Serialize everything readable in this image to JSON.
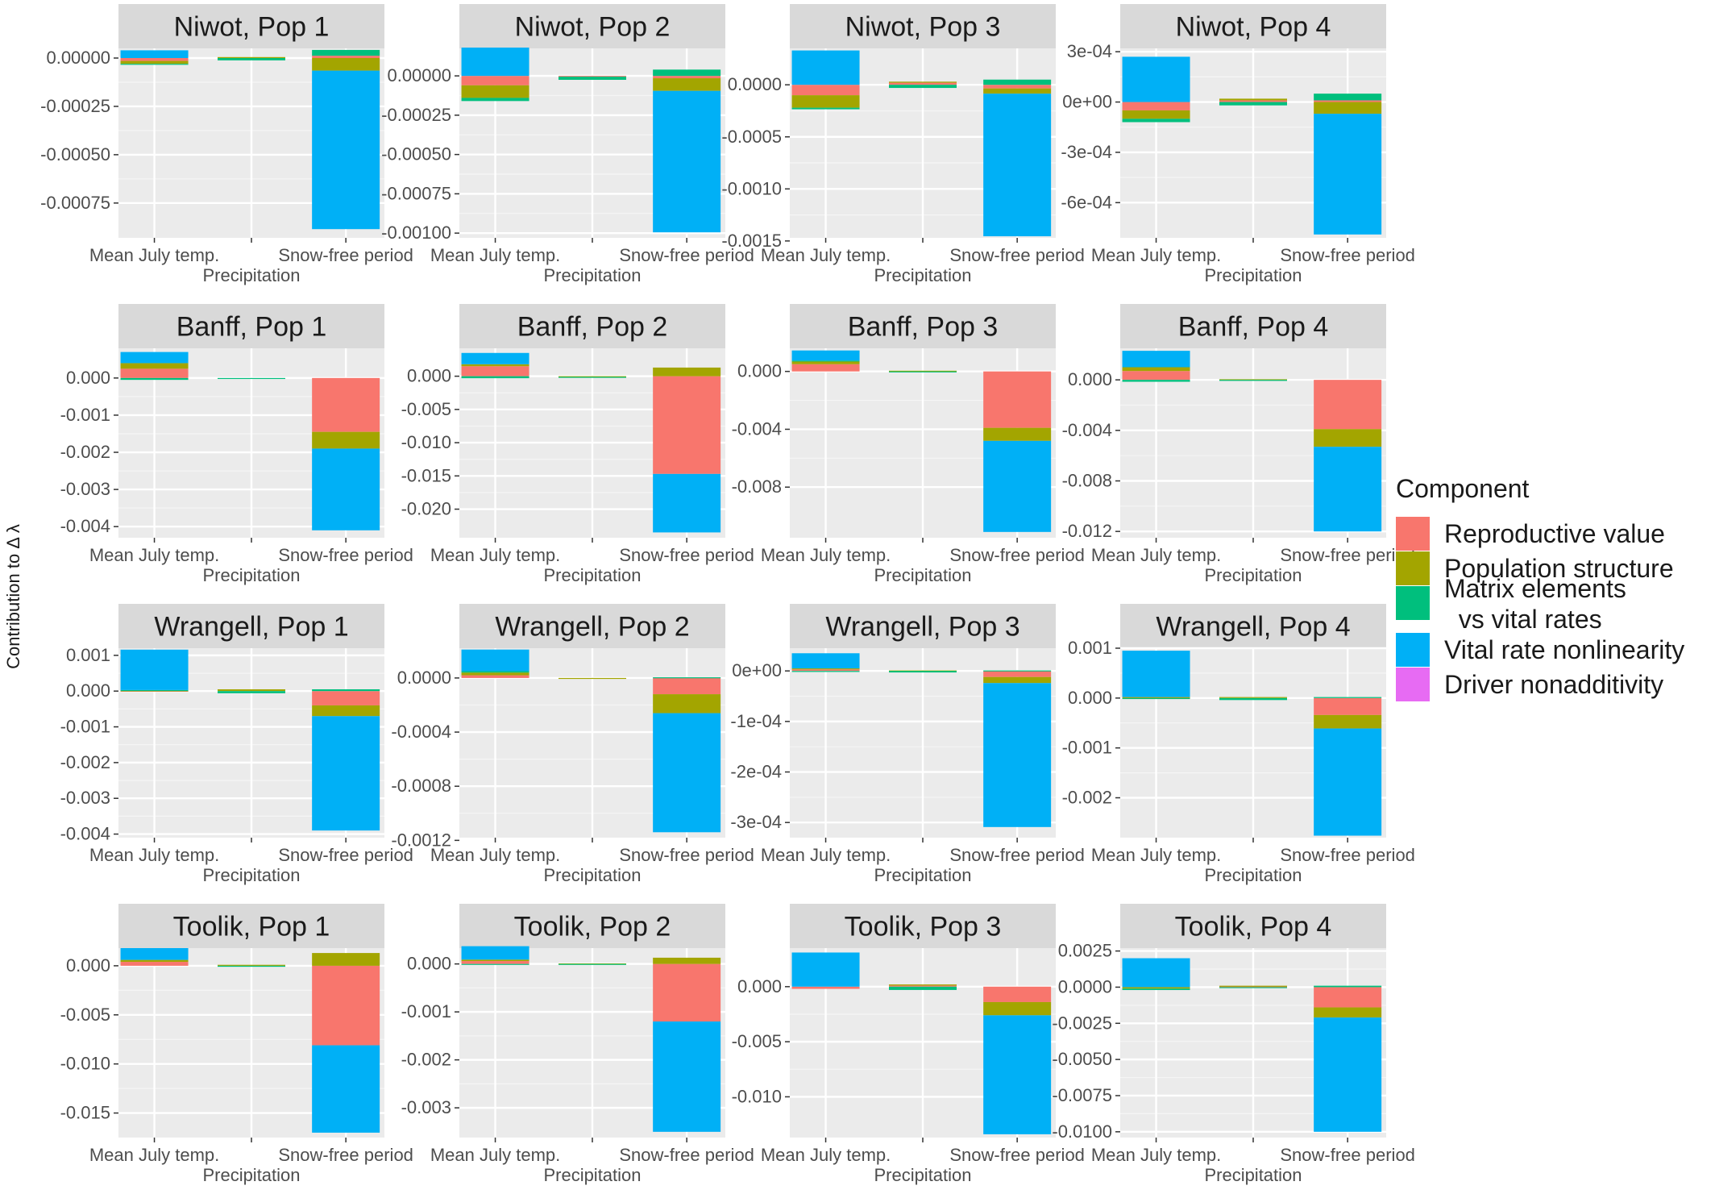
{
  "chart_data": {
    "type": "bar",
    "stacked": true,
    "ylabel": "Contribution to Δ λ",
    "categories": [
      "Mean July temp.",
      "Precipitation",
      "Snow-free period"
    ],
    "components": [
      {
        "name": "Reproductive value",
        "color": "#F8766D"
      },
      {
        "name": "Population structure",
        "color": "#A3A500"
      },
      {
        "name": "Matrix elements\n  vs vital rates",
        "color": "#00BF7D"
      },
      {
        "name": "Vital rate nonlinearity",
        "color": "#00B0F6"
      },
      {
        "name": "Driver nonadditivity",
        "color": "#E76BF3"
      }
    ],
    "legend": {
      "title": "Component",
      "position": "right"
    },
    "grid": true,
    "panels": [
      {
        "title": "Niwot, Pop 1",
        "ylim": [
          -0.00093,
          5e-05
        ],
        "yticks": [
          0,
          -0.00025,
          -0.0005,
          -0.00075
        ],
        "yticklabels": [
          "0.00000",
          "-0.00025",
          "-0.00050",
          "-0.00075"
        ],
        "bars": [
          {
            "Reproductive value": -1.5e-05,
            "Population structure": -1.5e-05,
            "Matrix elements": -5e-06,
            "Vital rate nonlinearity": 4e-05,
            "Driver nonadditivity": 0
          },
          {
            "Reproductive value": 0,
            "Population structure": 5e-06,
            "Matrix elements": -1.2e-05,
            "Vital rate nonlinearity": 0,
            "Driver nonadditivity": 0
          },
          {
            "Reproductive value": 1.2e-05,
            "Population structure": -6.5e-05,
            "Matrix elements": 3e-05,
            "Vital rate nonlinearity": -0.00082,
            "Driver nonadditivity": 0
          }
        ]
      },
      {
        "title": "Niwot, Pop 2",
        "ylim": [
          -0.00103,
          0.000175
        ],
        "yticks": [
          0,
          -0.00025,
          -0.0005,
          -0.00075,
          -0.001
        ],
        "yticklabels": [
          "0.00000",
          "-0.00025",
          "-0.00050",
          "-0.00075",
          "-0.00100"
        ],
        "bars": [
          {
            "Reproductive value": -6e-05,
            "Population structure": -8e-05,
            "Matrix elements": -2e-05,
            "Vital rate nonlinearity": 0.00018,
            "Driver nonadditivity": 0
          },
          {
            "Reproductive value": -5e-06,
            "Population structure": 0,
            "Matrix elements": -2e-05,
            "Vital rate nonlinearity": 0,
            "Driver nonadditivity": 0
          },
          {
            "Reproductive value": -1.5e-05,
            "Population structure": -8e-05,
            "Matrix elements": 4e-05,
            "Vital rate nonlinearity": -0.0009,
            "Driver nonadditivity": 0
          }
        ]
      },
      {
        "title": "Niwot, Pop 3",
        "ylim": [
          -0.00147,
          0.00035
        ],
        "yticks": [
          0,
          -0.0005,
          -0.001,
          -0.0015
        ],
        "yticklabels": [
          "0.0000",
          "-0.0005",
          "-0.0010",
          "-0.0015"
        ],
        "bars": [
          {
            "Reproductive value": -0.0001,
            "Population structure": -0.00012,
            "Matrix elements": -1.5e-05,
            "Vital rate nonlinearity": 0.00033,
            "Driver nonadditivity": 0
          },
          {
            "Reproductive value": 2e-05,
            "Population structure": 1e-05,
            "Matrix elements": -3e-05,
            "Vital rate nonlinearity": 0,
            "Driver nonadditivity": 0
          },
          {
            "Reproductive value": -3.5e-05,
            "Population structure": -5e-05,
            "Matrix elements": 5e-05,
            "Vital rate nonlinearity": -0.00137,
            "Driver nonadditivity": 0
          }
        ]
      },
      {
        "title": "Niwot, Pop 4",
        "ylim": [
          -0.00081,
          0.00032
        ],
        "yticks": [
          0.0003,
          0,
          -0.0003,
          -0.0006
        ],
        "yticklabels": [
          "3e-04",
          "0e+00",
          "-3e-04",
          "-6e-04"
        ],
        "bars": [
          {
            "Reproductive value": -5e-05,
            "Population structure": -5e-05,
            "Matrix elements": -2e-05,
            "Vital rate nonlinearity": 0.00027,
            "Driver nonadditivity": 0
          },
          {
            "Reproductive value": 1e-05,
            "Population structure": 1e-05,
            "Matrix elements": -2e-05,
            "Vital rate nonlinearity": 0,
            "Driver nonadditivity": 0
          },
          {
            "Reproductive value": 1e-05,
            "Population structure": -7e-05,
            "Matrix elements": 4e-05,
            "Vital rate nonlinearity": -0.00072,
            "Driver nonadditivity": 0
          }
        ]
      },
      {
        "title": "Banff, Pop 1",
        "ylim": [
          -0.0043,
          0.0008
        ],
        "yticks": [
          0,
          -0.001,
          -0.002,
          -0.003,
          -0.004
        ],
        "yticklabels": [
          "0.000",
          "-0.001",
          "-0.002",
          "-0.003",
          "-0.004"
        ],
        "bars": [
          {
            "Reproductive value": 0.00025,
            "Population structure": 0.00015,
            "Matrix elements": -5e-05,
            "Vital rate nonlinearity": 0.0003,
            "Driver nonadditivity": 0
          },
          {
            "Reproductive value": 0,
            "Population structure": 0,
            "Matrix elements": -1e-05,
            "Vital rate nonlinearity": 0,
            "Driver nonadditivity": 0
          },
          {
            "Reproductive value": -0.00145,
            "Population structure": -0.00045,
            "Matrix elements": 0,
            "Vital rate nonlinearity": -0.0022,
            "Driver nonadditivity": 0
          }
        ]
      },
      {
        "title": "Banff, Pop 2",
        "ylim": [
          -0.0243,
          0.0042
        ],
        "yticks": [
          0,
          -0.005,
          -0.01,
          -0.015,
          -0.02
        ],
        "yticklabels": [
          "0.000",
          "-0.005",
          "-0.010",
          "-0.015",
          "-0.020"
        ],
        "bars": [
          {
            "Reproductive value": 0.0015,
            "Population structure": 0.0003,
            "Matrix elements": -0.0003,
            "Vital rate nonlinearity": 0.0017,
            "Driver nonadditivity": 0
          },
          {
            "Reproductive value": 0,
            "Population structure": -0.0001,
            "Matrix elements": -5e-05,
            "Vital rate nonlinearity": 0,
            "Driver nonadditivity": 0
          },
          {
            "Reproductive value": -0.0147,
            "Population structure": 0.0013,
            "Matrix elements": 0,
            "Vital rate nonlinearity": -0.0088,
            "Driver nonadditivity": 0
          }
        ]
      },
      {
        "title": "Banff, Pop 3",
        "ylim": [
          -0.0115,
          0.0016
        ],
        "yticks": [
          0,
          -0.004,
          -0.008
        ],
        "yticklabels": [
          "0.000",
          "-0.004",
          "-0.008"
        ],
        "bars": [
          {
            "Reproductive value": 0.0005,
            "Population structure": 0.0002,
            "Matrix elements": 5e-05,
            "Vital rate nonlinearity": 0.0007,
            "Driver nonadditivity": 0
          },
          {
            "Reproductive value": 0,
            "Population structure": 5e-05,
            "Matrix elements": -5e-05,
            "Vital rate nonlinearity": 0,
            "Driver nonadditivity": 0
          },
          {
            "Reproductive value": -0.0039,
            "Population structure": -0.0009,
            "Matrix elements": 0,
            "Vital rate nonlinearity": -0.0063,
            "Driver nonadditivity": 0
          }
        ]
      },
      {
        "title": "Banff, Pop 4",
        "ylim": [
          -0.0125,
          0.0025
        ],
        "yticks": [
          0,
          -0.004,
          -0.008,
          -0.012
        ],
        "yticklabels": [
          "0.000",
          "-0.004",
          "-0.008",
          "-0.012"
        ],
        "bars": [
          {
            "Reproductive value": 0.0007,
            "Population structure": 0.0003,
            "Matrix elements": -0.00015,
            "Vital rate nonlinearity": 0.0013,
            "Driver nonadditivity": 0
          },
          {
            "Reproductive value": 0,
            "Population structure": 5e-05,
            "Matrix elements": -8e-05,
            "Vital rate nonlinearity": 0,
            "Driver nonadditivity": 0
          },
          {
            "Reproductive value": -0.0039,
            "Population structure": -0.0014,
            "Matrix elements": 0,
            "Vital rate nonlinearity": -0.0067,
            "Driver nonadditivity": 0
          }
        ]
      },
      {
        "title": "Wrangell, Pop 1",
        "ylim": [
          -0.0041,
          0.0012
        ],
        "yticks": [
          0.001,
          0,
          -0.001,
          -0.002,
          -0.003,
          -0.004
        ],
        "yticklabels": [
          "0.001",
          "0.000",
          "-0.001",
          "-0.002",
          "-0.003",
          "-0.004"
        ],
        "bars": [
          {
            "Reproductive value": 1e-05,
            "Population structure": 1e-05,
            "Matrix elements": 1e-05,
            "Vital rate nonlinearity": 0.00113,
            "Driver nonadditivity": 0
          },
          {
            "Reproductive value": 0,
            "Population structure": 5e-05,
            "Matrix elements": -6e-05,
            "Vital rate nonlinearity": 0,
            "Driver nonadditivity": 0
          },
          {
            "Reproductive value": -0.0004,
            "Population structure": -0.0003,
            "Matrix elements": 5e-05,
            "Vital rate nonlinearity": -0.0032,
            "Driver nonadditivity": 0
          }
        ]
      },
      {
        "title": "Wrangell, Pop 2",
        "ylim": [
          -0.00118,
          0.00022
        ],
        "yticks": [
          0,
          -0.0004,
          -0.0008,
          -0.0012
        ],
        "yticklabels": [
          "0.0000",
          "-0.0004",
          "-0.0008",
          "-0.0012"
        ],
        "bars": [
          {
            "Reproductive value": 2e-05,
            "Population structure": 2e-05,
            "Matrix elements": 1e-05,
            "Vital rate nonlinearity": 0.00016,
            "Driver nonadditivity": 0
          },
          {
            "Reproductive value": 0,
            "Population structure": -5e-06,
            "Matrix elements": 0,
            "Vital rate nonlinearity": 0,
            "Driver nonadditivity": 0
          },
          {
            "Reproductive value": -0.00012,
            "Population structure": -0.00014,
            "Matrix elements": 5e-06,
            "Vital rate nonlinearity": -0.00088,
            "Driver nonadditivity": 0
          }
        ]
      },
      {
        "title": "Wrangell, Pop 3",
        "ylim": [
          -0.00033,
          4.5e-05
        ],
        "yticks": [
          0,
          -0.0001,
          -0.0002,
          -0.0003
        ],
        "yticklabels": [
          "0e+00",
          "-1e-04",
          "-2e-04",
          "-3e-04"
        ],
        "bars": [
          {
            "Reproductive value": 3e-06,
            "Population structure": 2e-06,
            "Matrix elements": -2e-06,
            "Vital rate nonlinearity": 3e-05,
            "Driver nonadditivity": 0
          },
          {
            "Reproductive value": 0,
            "Population structure": 1e-06,
            "Matrix elements": -3e-06,
            "Vital rate nonlinearity": 0,
            "Driver nonadditivity": 0
          },
          {
            "Reproductive value": -1.2e-05,
            "Population structure": -1.2e-05,
            "Matrix elements": 1e-06,
            "Vital rate nonlinearity": -0.000285,
            "Driver nonadditivity": 0
          }
        ]
      },
      {
        "title": "Wrangell, Pop 4",
        "ylim": [
          -0.0028,
          0.001
        ],
        "yticks": [
          0.001,
          0,
          -0.001,
          -0.002
        ],
        "yticklabels": [
          "0.001",
          "0.000",
          "-0.001",
          "-0.002"
        ],
        "bars": [
          {
            "Reproductive value": 1e-05,
            "Population structure": 1e-05,
            "Matrix elements": -2e-05,
            "Vital rate nonlinearity": 0.00093,
            "Driver nonadditivity": 0
          },
          {
            "Reproductive value": 0,
            "Population structure": 2e-05,
            "Matrix elements": -4e-05,
            "Vital rate nonlinearity": 0,
            "Driver nonadditivity": 0
          },
          {
            "Reproductive value": -0.00034,
            "Population structure": -0.00027,
            "Matrix elements": 2e-05,
            "Vital rate nonlinearity": -0.00215,
            "Driver nonadditivity": 0
          }
        ]
      },
      {
        "title": "Toolik, Pop 1",
        "ylim": [
          -0.0175,
          0.0018
        ],
        "yticks": [
          0,
          -0.005,
          -0.01,
          -0.015
        ],
        "yticklabels": [
          "0.000",
          "-0.005",
          "-0.010",
          "-0.015"
        ],
        "bars": [
          {
            "Reproductive value": 0.0004,
            "Population structure": 0.0002,
            "Matrix elements": 0,
            "Vital rate nonlinearity": 0.0012,
            "Driver nonadditivity": 0
          },
          {
            "Reproductive value": 0,
            "Population structure": 0.0001,
            "Matrix elements": -0.0001,
            "Vital rate nonlinearity": 0,
            "Driver nonadditivity": 0
          },
          {
            "Reproductive value": -0.0081,
            "Population structure": 0.0013,
            "Matrix elements": 0,
            "Vital rate nonlinearity": -0.0089,
            "Driver nonadditivity": 0
          }
        ]
      },
      {
        "title": "Toolik, Pop 2",
        "ylim": [
          -0.00362,
          0.00033
        ],
        "yticks": [
          0,
          -0.001,
          -0.002,
          -0.003
        ],
        "yticklabels": [
          "0.000",
          "-0.001",
          "-0.002",
          "-0.003"
        ],
        "bars": [
          {
            "Reproductive value": 6e-05,
            "Population structure": 3e-05,
            "Matrix elements": -2e-05,
            "Vital rate nonlinearity": 0.00028,
            "Driver nonadditivity": 0
          },
          {
            "Reproductive value": 0,
            "Population structure": 1e-05,
            "Matrix elements": -2e-05,
            "Vital rate nonlinearity": 0,
            "Driver nonadditivity": 0
          },
          {
            "Reproductive value": -0.0012,
            "Population structure": 0.00013,
            "Matrix elements": 0,
            "Vital rate nonlinearity": -0.0023,
            "Driver nonadditivity": 0
          }
        ]
      },
      {
        "title": "Toolik, Pop 3",
        "ylim": [
          -0.0137,
          0.0035
        ],
        "yticks": [
          0,
          -0.005,
          -0.01
        ],
        "yticklabels": [
          "0.000",
          "-0.005",
          "-0.010"
        ],
        "bars": [
          {
            "Reproductive value": -0.0002,
            "Population structure": 0,
            "Matrix elements": 0,
            "Vital rate nonlinearity": 0.0031,
            "Driver nonadditivity": 0
          },
          {
            "Reproductive value": 0.0001,
            "Population structure": 0.0001,
            "Matrix elements": -0.0003,
            "Vital rate nonlinearity": 0,
            "Driver nonadditivity": 0
          },
          {
            "Reproductive value": -0.0014,
            "Population structure": -0.0012,
            "Matrix elements": 0,
            "Vital rate nonlinearity": -0.0108,
            "Driver nonadditivity": 0
          }
        ]
      },
      {
        "title": "Toolik, Pop 4",
        "ylim": [
          -0.0104,
          0.0027
        ],
        "yticks": [
          0.0025,
          0,
          -0.0025,
          -0.005,
          -0.0075,
          -0.01
        ],
        "yticklabels": [
          "0.0025",
          "0.0000",
          "-0.0025",
          "-0.0050",
          "-0.0075",
          "-0.0100"
        ],
        "bars": [
          {
            "Reproductive value": 0,
            "Population structure": -0.0001,
            "Matrix elements": -0.0001,
            "Vital rate nonlinearity": 0.002,
            "Driver nonadditivity": 0
          },
          {
            "Reproductive value": 5e-05,
            "Population structure": 5e-05,
            "Matrix elements": -5e-05,
            "Vital rate nonlinearity": 0,
            "Driver nonadditivity": 0
          },
          {
            "Reproductive value": -0.0014,
            "Population structure": -0.0007,
            "Matrix elements": 0.0001,
            "Vital rate nonlinearity": -0.0079,
            "Driver nonadditivity": 0
          }
        ]
      }
    ]
  }
}
